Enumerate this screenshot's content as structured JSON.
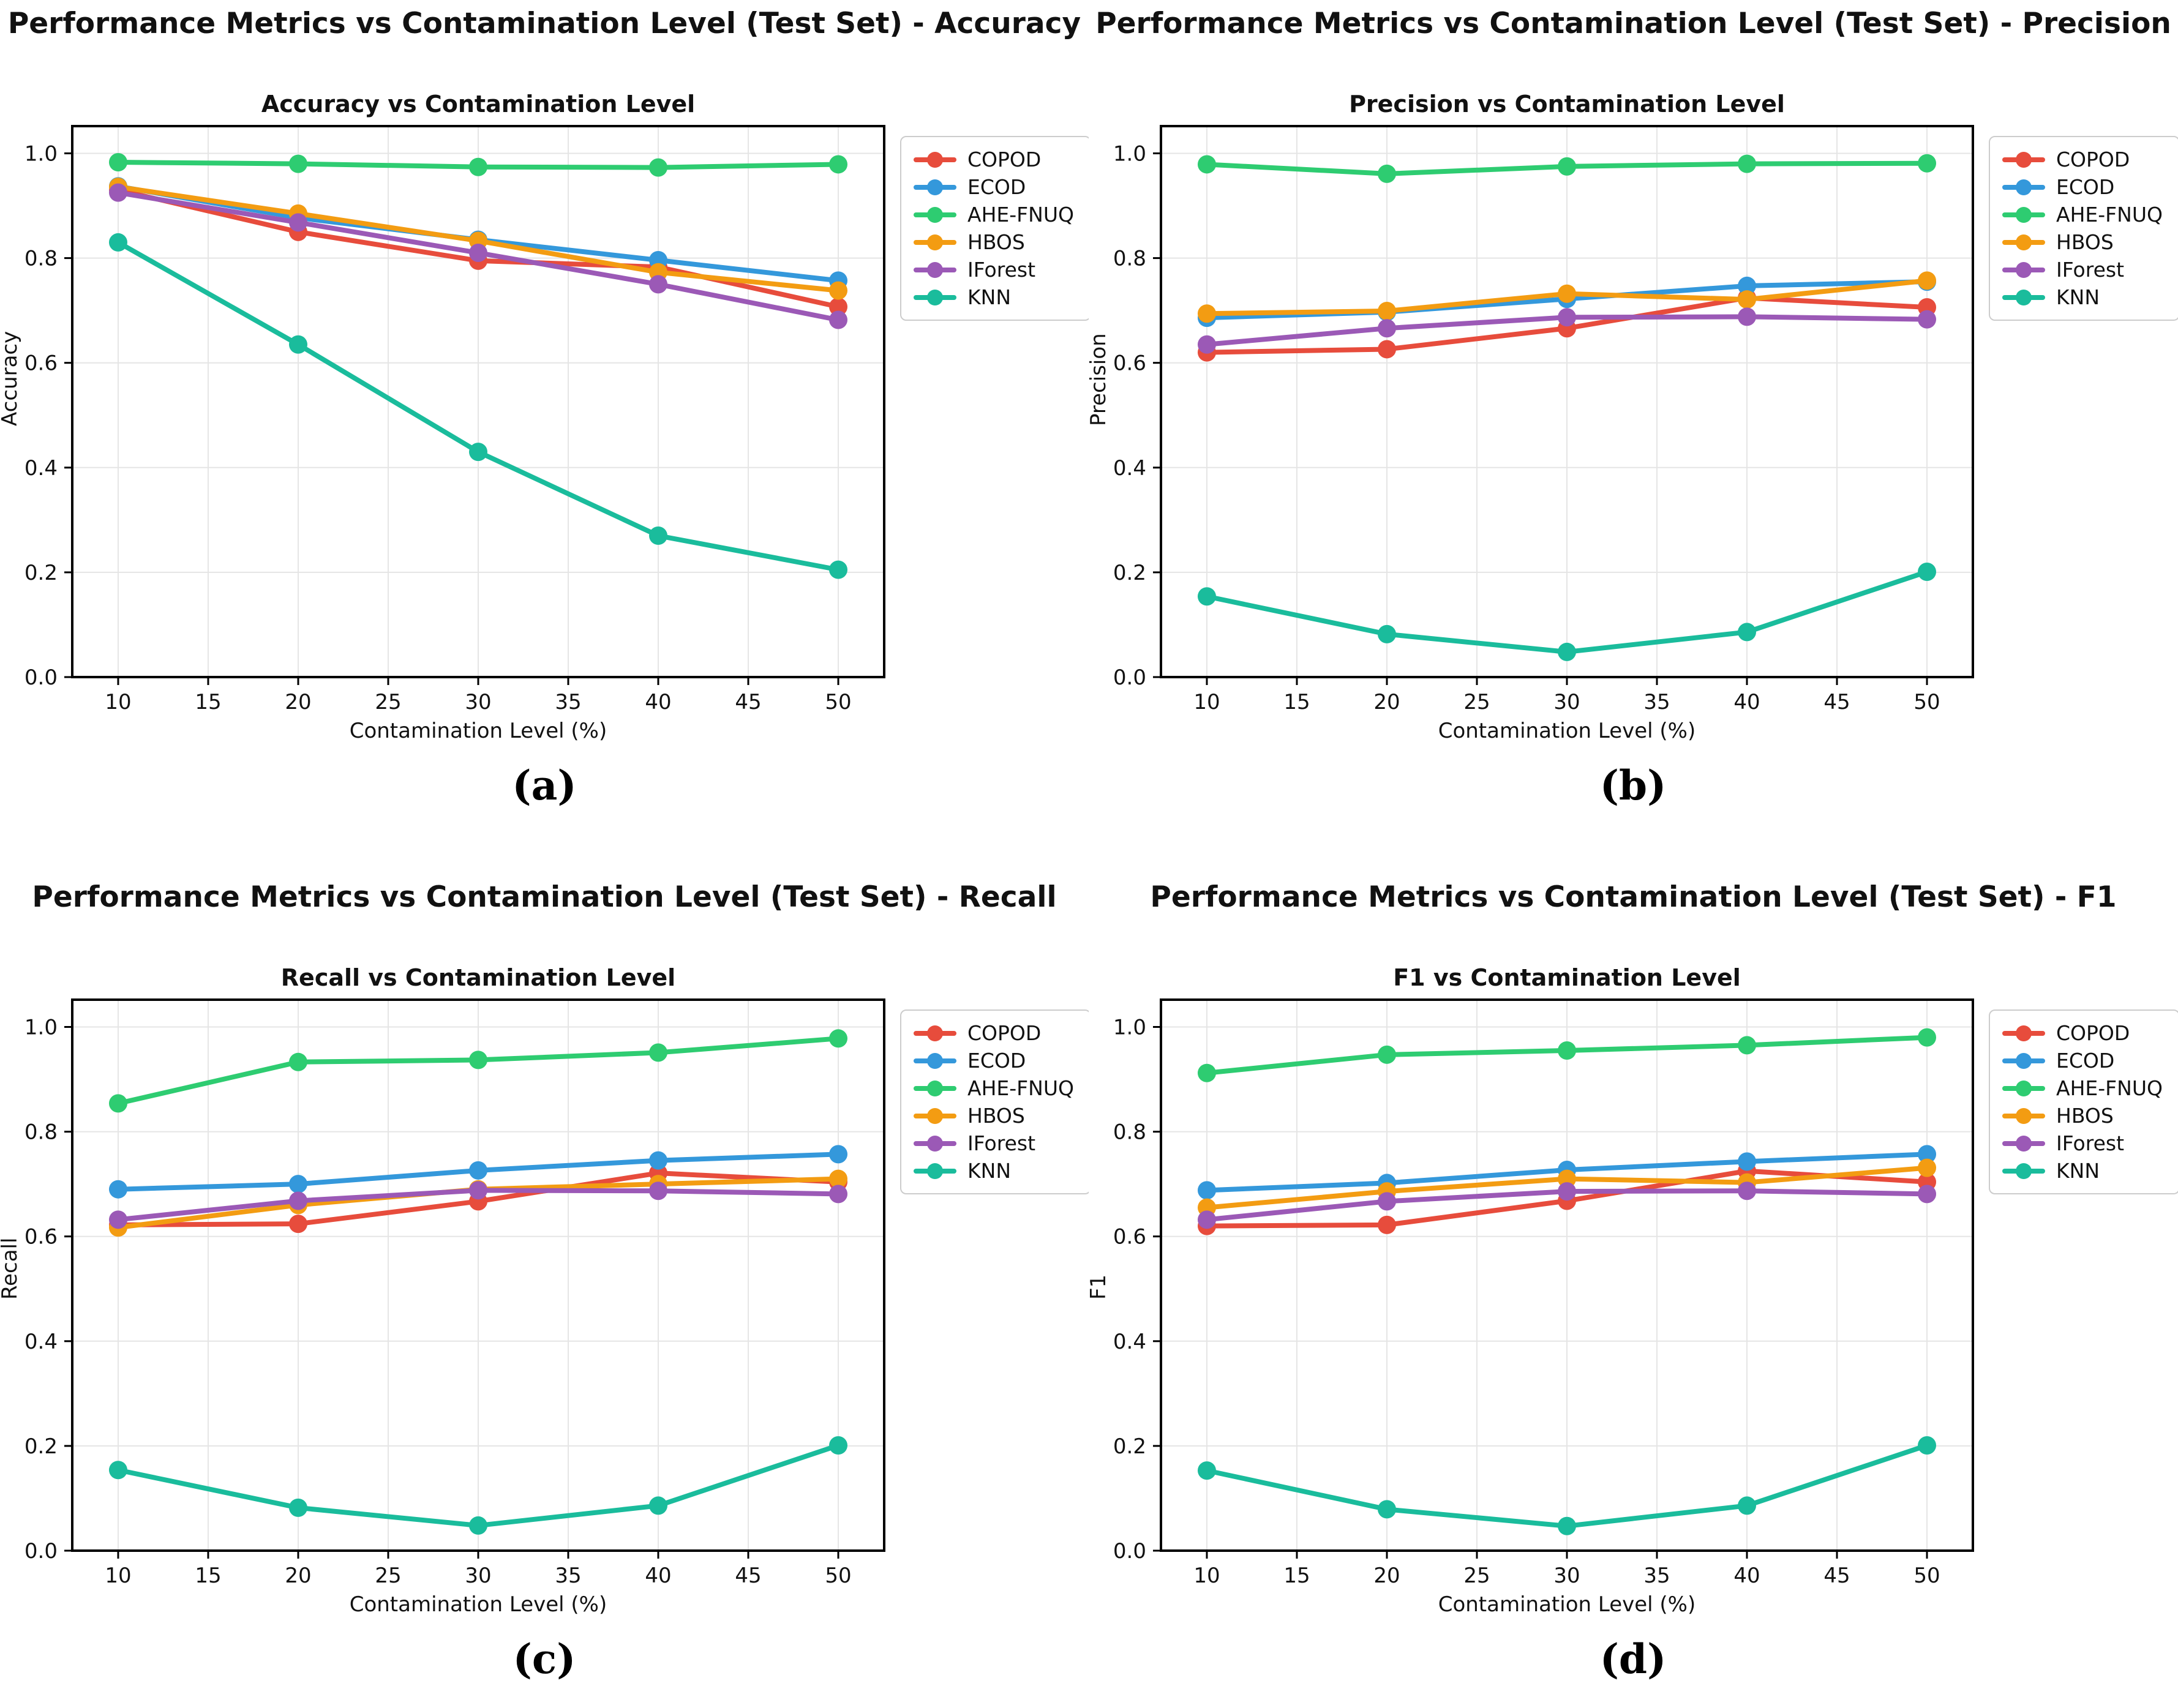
{
  "figure": {
    "background": "#ffffff",
    "text_color": "#111111",
    "grid_color": "#e5e5e5",
    "spine_color": "#000000",
    "legend_border_color": "#cccccc",
    "legend_background": "#ffffff"
  },
  "legend": {
    "position": "right",
    "entries": [
      "COPOD",
      "ECOD",
      "AHE-FNUQ",
      "HBOS",
      "IForest",
      "KNN"
    ]
  },
  "series_colors": {
    "COPOD": "#e74c3c",
    "ECOD": "#3498db",
    "AHE-FNUQ": "#2ecc71",
    "HBOS": "#f39c12",
    "IForest": "#9b59b6",
    "KNN": "#1abc9c"
  },
  "chart_data": [
    {
      "type": "line",
      "caption": "(a)",
      "header": "Performance Metrics vs Contamination Level (Test Set) - Accuracy",
      "title": "Accuracy vs Contamination Level",
      "xlabel": "Contamination Level (%)",
      "ylabel": "Accuracy",
      "x": [
        10,
        20,
        30,
        40,
        50
      ],
      "xticks": [
        10,
        15,
        20,
        25,
        30,
        35,
        40,
        45,
        50
      ],
      "ytick_labels": [
        "0.0",
        "0.2",
        "0.4",
        "0.6",
        "0.8",
        "1.0"
      ],
      "yticks": [
        0,
        0.2,
        0.4,
        0.6,
        0.8,
        1.0
      ],
      "xlim": [
        7.45,
        52.55
      ],
      "ylim": [
        0,
        1.052
      ],
      "grid": true,
      "legend_position": "right",
      "series": [
        {
          "name": "COPOD",
          "color": "#e74c3c",
          "values": [
            0.93,
            0.85,
            0.795,
            0.783,
            0.707
          ]
        },
        {
          "name": "ECOD",
          "color": "#3498db",
          "values": [
            0.937,
            0.877,
            0.835,
            0.796,
            0.757
          ]
        },
        {
          "name": "AHE-FNUQ",
          "color": "#2ecc71",
          "values": [
            0.983,
            0.98,
            0.974,
            0.973,
            0.979
          ]
        },
        {
          "name": "HBOS",
          "color": "#f39c12",
          "values": [
            0.936,
            0.885,
            0.833,
            0.773,
            0.738
          ]
        },
        {
          "name": "IForest",
          "color": "#9b59b6",
          "values": [
            0.925,
            0.868,
            0.81,
            0.75,
            0.682
          ]
        },
        {
          "name": "KNN",
          "color": "#1abc9c",
          "values": [
            0.83,
            0.635,
            0.43,
            0.27,
            0.205
          ]
        }
      ]
    },
    {
      "type": "line",
      "caption": "(b)",
      "header": "Performance Metrics vs Contamination Level (Test Set) - Precision",
      "title": "Precision vs Contamination Level",
      "xlabel": "Contamination Level (%)",
      "ylabel": "Precision",
      "x": [
        10,
        20,
        30,
        40,
        50
      ],
      "xticks": [
        10,
        15,
        20,
        25,
        30,
        35,
        40,
        45,
        50
      ],
      "ytick_labels": [
        "0.0",
        "0.2",
        "0.4",
        "0.6",
        "0.8",
        "1.0"
      ],
      "yticks": [
        0,
        0.2,
        0.4,
        0.6,
        0.8,
        1.0
      ],
      "xlim": [
        7.45,
        52.55
      ],
      "ylim": [
        0,
        1.052
      ],
      "grid": true,
      "legend_position": "right",
      "series": [
        {
          "name": "COPOD",
          "color": "#e74c3c",
          "values": [
            0.62,
            0.626,
            0.666,
            0.724,
            0.706
          ]
        },
        {
          "name": "ECOD",
          "color": "#3498db",
          "values": [
            0.686,
            0.697,
            0.722,
            0.747,
            0.755
          ]
        },
        {
          "name": "AHE-FNUQ",
          "color": "#2ecc71",
          "values": [
            0.979,
            0.961,
            0.975,
            0.98,
            0.981
          ]
        },
        {
          "name": "HBOS",
          "color": "#f39c12",
          "values": [
            0.694,
            0.699,
            0.732,
            0.721,
            0.757
          ]
        },
        {
          "name": "IForest",
          "color": "#9b59b6",
          "values": [
            0.635,
            0.666,
            0.687,
            0.688,
            0.683
          ]
        },
        {
          "name": "KNN",
          "color": "#1abc9c",
          "values": [
            0.154,
            0.082,
            0.048,
            0.086,
            0.201
          ]
        }
      ]
    },
    {
      "type": "line",
      "caption": "(c)",
      "header": "Performance Metrics vs Contamination Level (Test Set) - Recall",
      "title": "Recall vs Contamination Level",
      "xlabel": "Contamination Level (%)",
      "ylabel": "Recall",
      "x": [
        10,
        20,
        30,
        40,
        50
      ],
      "xticks": [
        10,
        15,
        20,
        25,
        30,
        35,
        40,
        45,
        50
      ],
      "ytick_labels": [
        "0.0",
        "0.2",
        "0.4",
        "0.6",
        "0.8",
        "1.0"
      ],
      "yticks": [
        0,
        0.2,
        0.4,
        0.6,
        0.8,
        1.0
      ],
      "xlim": [
        7.45,
        52.55
      ],
      "ylim": [
        0,
        1.052
      ],
      "grid": true,
      "legend_position": "right",
      "series": [
        {
          "name": "COPOD",
          "color": "#e74c3c",
          "values": [
            0.622,
            0.624,
            0.667,
            0.721,
            0.704
          ]
        },
        {
          "name": "ECOD",
          "color": "#3498db",
          "values": [
            0.69,
            0.7,
            0.726,
            0.745,
            0.757
          ]
        },
        {
          "name": "AHE-FNUQ",
          "color": "#2ecc71",
          "values": [
            0.854,
            0.933,
            0.937,
            0.951,
            0.978
          ]
        },
        {
          "name": "HBOS",
          "color": "#f39c12",
          "values": [
            0.617,
            0.66,
            0.69,
            0.7,
            0.71
          ]
        },
        {
          "name": "IForest",
          "color": "#9b59b6",
          "values": [
            0.632,
            0.668,
            0.688,
            0.687,
            0.681
          ]
        },
        {
          "name": "KNN",
          "color": "#1abc9c",
          "values": [
            0.154,
            0.082,
            0.048,
            0.086,
            0.201
          ]
        }
      ]
    },
    {
      "type": "line",
      "caption": "(d)",
      "header": "Performance Metrics vs Contamination Level (Test Set) - F1",
      "title": "F1 vs Contamination Level",
      "xlabel": "Contamination Level (%)",
      "ylabel": "F1",
      "x": [
        10,
        20,
        30,
        40,
        50
      ],
      "xticks": [
        10,
        15,
        20,
        25,
        30,
        35,
        40,
        45,
        50
      ],
      "ytick_labels": [
        "0.0",
        "0.2",
        "0.4",
        "0.6",
        "0.8",
        "1.0"
      ],
      "yticks": [
        0,
        0.2,
        0.4,
        0.6,
        0.8,
        1.0
      ],
      "xlim": [
        7.45,
        52.55
      ],
      "ylim": [
        0,
        1.052
      ],
      "grid": true,
      "legend_position": "right",
      "series": [
        {
          "name": "COPOD",
          "color": "#e74c3c",
          "values": [
            0.62,
            0.622,
            0.668,
            0.725,
            0.704
          ]
        },
        {
          "name": "ECOD",
          "color": "#3498db",
          "values": [
            0.688,
            0.702,
            0.727,
            0.743,
            0.757
          ]
        },
        {
          "name": "AHE-FNUQ",
          "color": "#2ecc71",
          "values": [
            0.912,
            0.947,
            0.955,
            0.965,
            0.98
          ]
        },
        {
          "name": "HBOS",
          "color": "#f39c12",
          "values": [
            0.655,
            0.686,
            0.71,
            0.703,
            0.731
          ]
        },
        {
          "name": "IForest",
          "color": "#9b59b6",
          "values": [
            0.632,
            0.667,
            0.686,
            0.687,
            0.681
          ]
        },
        {
          "name": "KNN",
          "color": "#1abc9c",
          "values": [
            0.153,
            0.079,
            0.047,
            0.086,
            0.201
          ]
        }
      ]
    }
  ]
}
